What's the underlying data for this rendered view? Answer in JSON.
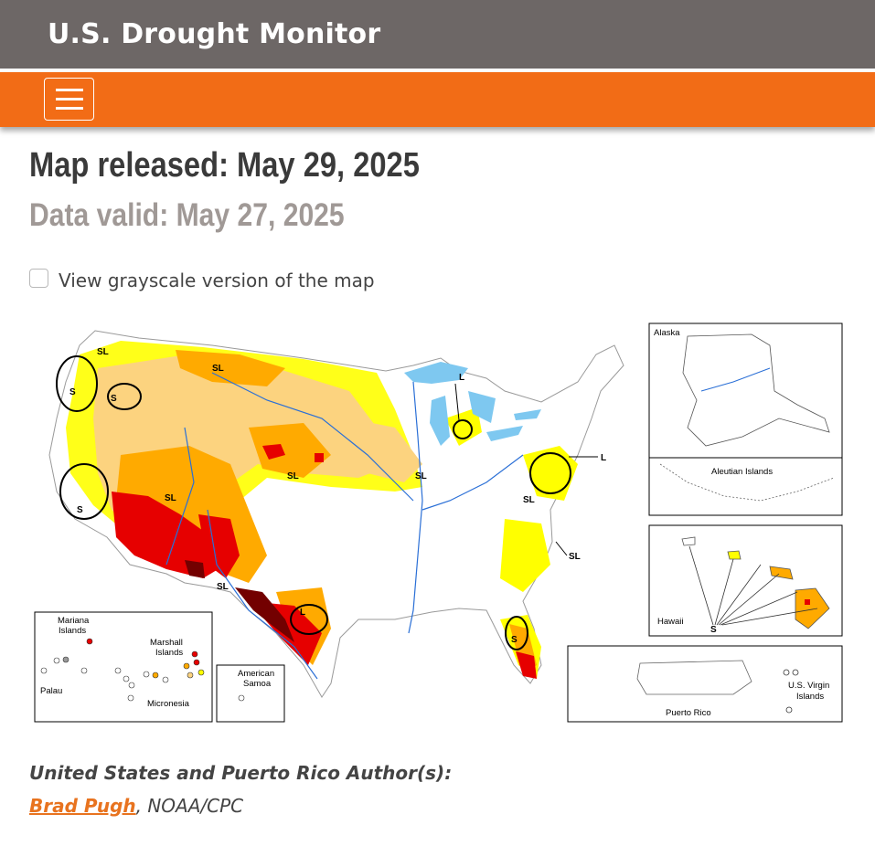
{
  "header": {
    "title": "U.S. Drought Monitor"
  },
  "nav": {
    "menu_icon": "hamburger-menu-icon"
  },
  "release": {
    "text": "Map released: May 29, 2025"
  },
  "valid": {
    "text": "Data valid: May 27, 2025"
  },
  "grayscale_toggle": {
    "label": "View grayscale version of the map",
    "checked": false
  },
  "map": {
    "impact_labels": {
      "sl": "SL",
      "s": "S",
      "l": "L"
    },
    "insets": {
      "alaska": "Alaska",
      "aleutian": "Aleutian Islands",
      "hawaii": "Hawaii",
      "puerto_rico": "Puerto Rico",
      "virgin_islands_1": "U.S. Virgin",
      "virgin_islands_2": "Islands",
      "mariana_1": "Mariana",
      "mariana_2": "Islands",
      "marshall_1": "Marshall",
      "marshall_2": "Islands",
      "palau": "Palau",
      "micronesia": "Micronesia",
      "samoa_1": "American",
      "samoa_2": "Samoa"
    },
    "colors": {
      "d0": "#ffff00",
      "d1": "#fcd37f",
      "d2": "#ffaa00",
      "d3": "#e60000",
      "d4": "#730000",
      "water": "#7ec8f0",
      "rivers": "#2a6fd6"
    }
  },
  "authors": {
    "heading": "United States and Puerto Rico Author(s):",
    "name": "Brad Pugh",
    "affiliation": ", NOAA/CPC"
  }
}
